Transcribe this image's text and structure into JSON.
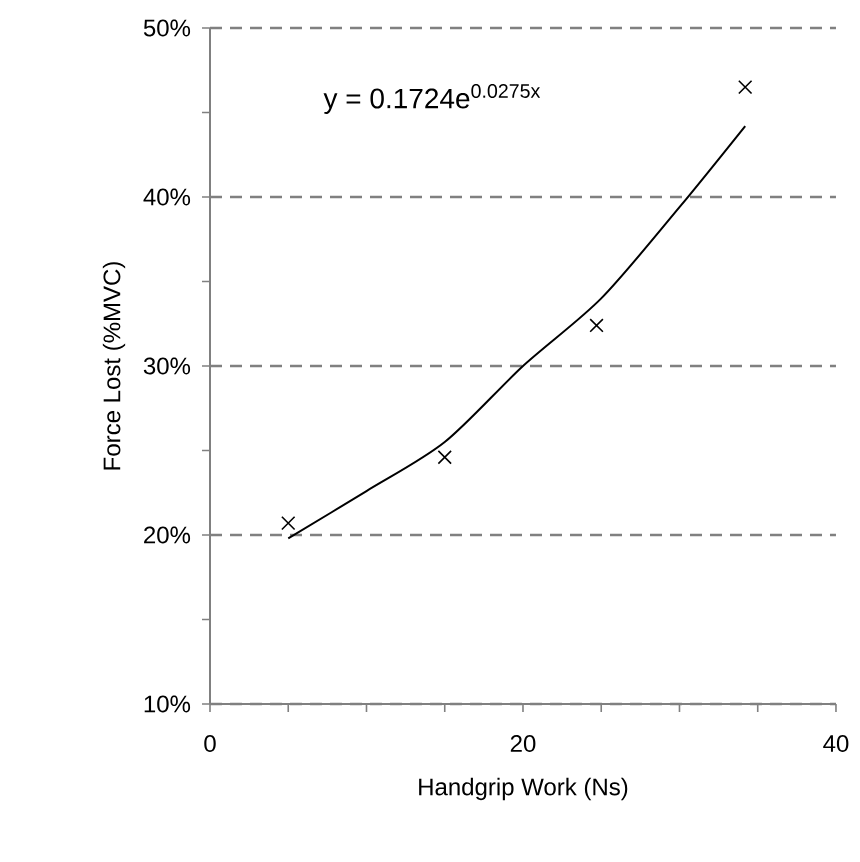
{
  "chart_data": {
    "type": "scatter",
    "xlabel": "Handgrip Work (Ns)",
    "ylabel": "Force Lost (%MVC)",
    "xlim": [
      0,
      40
    ],
    "xticks": [
      0,
      20,
      40
    ],
    "ylim": [
      10,
      50
    ],
    "yticks": [
      {
        "value": 10,
        "label": "10%"
      },
      {
        "value": 20,
        "label": "20%"
      },
      {
        "value": 30,
        "label": "30%"
      },
      {
        "value": 40,
        "label": "40%"
      },
      {
        "value": 50,
        "label": "50%"
      }
    ],
    "grid": "y",
    "marker": "cross",
    "annotations": [
      "y = 0.1724e$^{0.0275x}$"
    ],
    "series": [
      {
        "color": "#000000",
        "x": [
          5,
          15,
          24.7,
          34.2
        ],
        "values": [
          20.7,
          24.6,
          32.4,
          46.5
        ]
      },
      {
        "type": "line",
        "color": "#000000",
        "marker": "none",
        "x": [
          5,
          10,
          15,
          20,
          25,
          30,
          34.2
        ],
        "values": [
          19.8,
          22.6,
          25.5,
          30.0,
          34.0,
          39.4,
          44.2
        ]
      }
    ]
  }
}
